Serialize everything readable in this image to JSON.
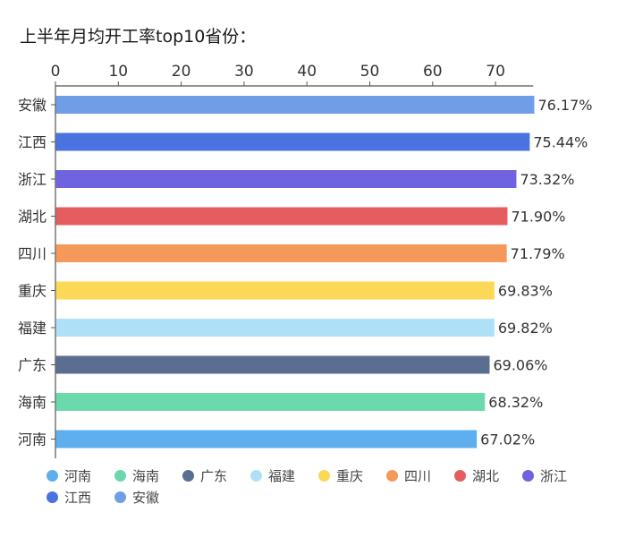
{
  "chart_data": {
    "type": "bar",
    "orientation": "horizontal",
    "title": "上半年月均开工率top10省份：",
    "xlabel": "",
    "ylabel": "",
    "xlim": [
      0,
      76
    ],
    "x_ticks": [
      0,
      10,
      20,
      30,
      40,
      50,
      60,
      70
    ],
    "x_axis_position": "top",
    "grid": false,
    "legend_position": "bottom",
    "value_suffix": "%",
    "bars": [
      {
        "category": "安徽",
        "value": 76.17,
        "label": "76.17%",
        "color": "#709ee6"
      },
      {
        "category": "江西",
        "value": 75.44,
        "label": "75.44%",
        "color": "#4a72e0"
      },
      {
        "category": "浙江",
        "value": 73.32,
        "label": "73.32%",
        "color": "#7063e0"
      },
      {
        "category": "湖北",
        "value": 71.9,
        "label": "71.90%",
        "color": "#e55d5f"
      },
      {
        "category": "四川",
        "value": 71.79,
        "label": "71.79%",
        "color": "#f5995a"
      },
      {
        "category": "重庆",
        "value": 69.83,
        "label": "69.83%",
        "color": "#fbd957"
      },
      {
        "category": "福建",
        "value": 69.82,
        "label": "69.82%",
        "color": "#aee0f7"
      },
      {
        "category": "广东",
        "value": 69.06,
        "label": "69.06%",
        "color": "#5b6e91"
      },
      {
        "category": "海南",
        "value": 68.32,
        "label": "68.32%",
        "color": "#6bd9ac"
      },
      {
        "category": "河南",
        "value": 67.02,
        "label": "67.02%",
        "color": "#5daff0"
      }
    ],
    "legend": [
      {
        "name": "河南",
        "color": "#5daff0"
      },
      {
        "name": "海南",
        "color": "#6bd9ac"
      },
      {
        "name": "广东",
        "color": "#5b6e91"
      },
      {
        "name": "福建",
        "color": "#aee0f7"
      },
      {
        "name": "重庆",
        "color": "#fbd957"
      },
      {
        "name": "四川",
        "color": "#f5995a"
      },
      {
        "name": "湖北",
        "color": "#e55d5f"
      },
      {
        "name": "浙江",
        "color": "#7063e0"
      },
      {
        "name": "江西",
        "color": "#4a72e0"
      },
      {
        "name": "安徽",
        "color": "#709ee6"
      }
    ]
  }
}
